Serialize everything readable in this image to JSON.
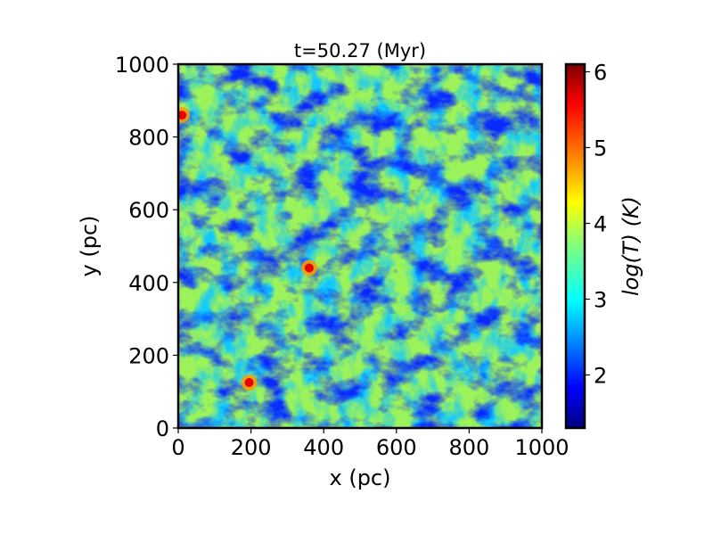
{
  "chart_data": {
    "type": "heatmap",
    "title": "t=50.27 (Myr)",
    "xlabel": "x (pc)",
    "ylabel": "y (pc)",
    "xlim": [
      0,
      1000
    ],
    "ylim": [
      0,
      1000
    ],
    "x_ticks": [
      0,
      200,
      400,
      600,
      800,
      1000
    ],
    "y_ticks": [
      0,
      200,
      400,
      600,
      800,
      1000
    ],
    "colorbar": {
      "label": "log(T) (K)",
      "colormap": "jet",
      "range": [
        1.3,
        6.1
      ],
      "ticks": [
        2,
        3,
        4,
        5,
        6
      ]
    },
    "field": {
      "background_value": 3.8,
      "dominant_range": [
        1.5,
        4.2
      ],
      "hot_spots": [
        {
          "x": 360,
          "y": 440,
          "value": 5.7
        },
        {
          "x": 195,
          "y": 125,
          "value": 5.2
        },
        {
          "x": 10,
          "y": 860,
          "value": 5.0
        }
      ]
    }
  },
  "colors": {
    "frame": "#000000",
    "cmap_stops": [
      "#00007f",
      "#0000ff",
      "#007fff",
      "#00ffff",
      "#7fff7f",
      "#ffff00",
      "#ff7f00",
      "#ff0000",
      "#7f0000"
    ]
  }
}
